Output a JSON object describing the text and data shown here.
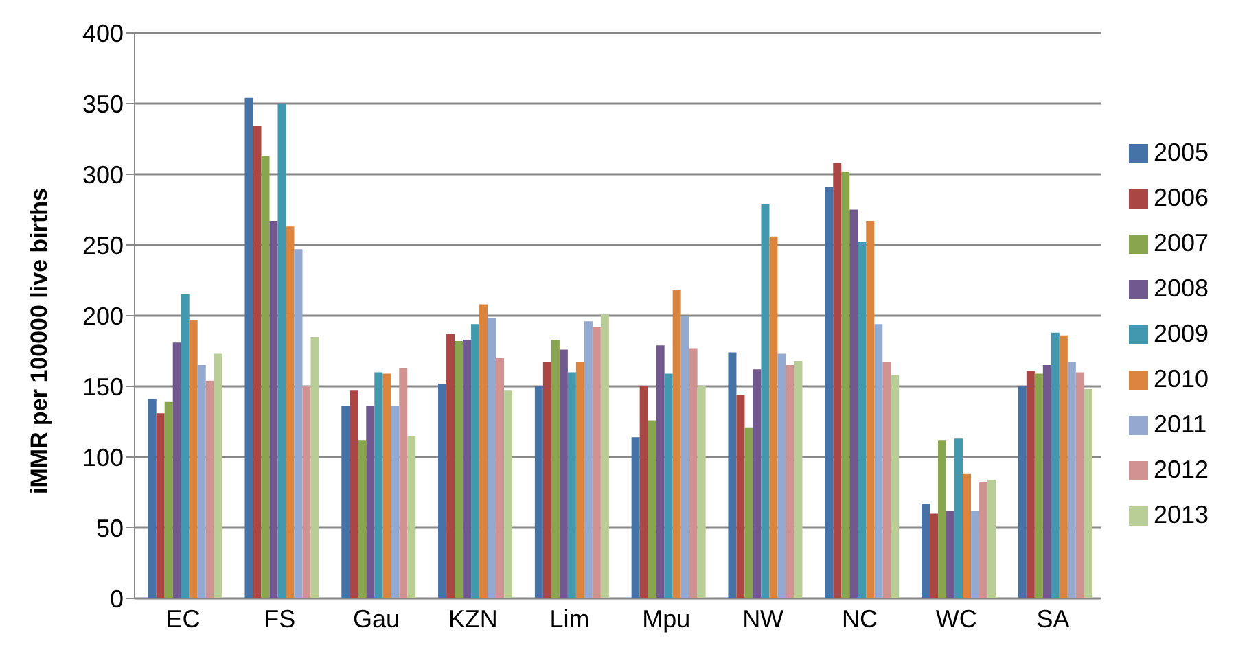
{
  "chart_data": {
    "type": "bar",
    "ylabel": "iMMR per 100000 live births",
    "categories": [
      "EC",
      "FS",
      "Gau",
      "KZN",
      "Lim",
      "Mpu",
      "NW",
      "NC",
      "WC",
      "SA"
    ],
    "series": [
      {
        "name": "2005",
        "color": "#4572a7",
        "values": [
          141,
          354,
          136,
          152,
          150,
          114,
          174,
          291,
          67,
          150
        ]
      },
      {
        "name": "2006",
        "color": "#aa4643",
        "values": [
          131,
          334,
          147,
          187,
          167,
          150,
          144,
          308,
          60,
          161
        ]
      },
      {
        "name": "2007",
        "color": "#89a54e",
        "values": [
          139,
          313,
          112,
          182,
          183,
          126,
          121,
          302,
          112,
          159
        ]
      },
      {
        "name": "2008",
        "color": "#71588f",
        "values": [
          181,
          267,
          136,
          183,
          176,
          179,
          162,
          275,
          62,
          165
        ]
      },
      {
        "name": "2009",
        "color": "#4198af",
        "values": [
          215,
          350,
          160,
          194,
          160,
          159,
          279,
          252,
          113,
          188
        ]
      },
      {
        "name": "2010",
        "color": "#db843d",
        "values": [
          197,
          263,
          159,
          208,
          167,
          218,
          256,
          267,
          88,
          186
        ]
      },
      {
        "name": "2011",
        "color": "#93a9cf",
        "values": [
          165,
          247,
          136,
          198,
          196,
          200,
          173,
          194,
          62,
          167
        ]
      },
      {
        "name": "2012",
        "color": "#d19392",
        "values": [
          154,
          150,
          163,
          170,
          192,
          177,
          165,
          167,
          82,
          160
        ]
      },
      {
        "name": "2013",
        "color": "#b9cd96",
        "values": [
          173,
          185,
          115,
          147,
          201,
          150,
          168,
          158,
          84,
          148
        ]
      }
    ],
    "ylim": [
      0,
      400
    ],
    "yticks": [
      0,
      50,
      100,
      150,
      200,
      250,
      300,
      350,
      400
    ],
    "grid": "y",
    "legend": "right"
  }
}
